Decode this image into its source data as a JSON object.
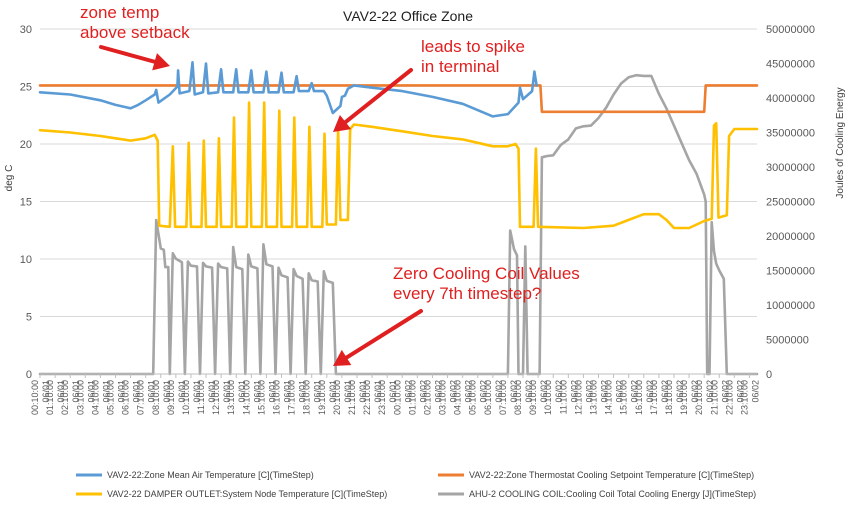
{
  "chart_data": {
    "type": "line",
    "title": "VAV2-22 Office Zone",
    "ylabel_left": "deg C",
    "ylabel_right": "Joules of Cooling Energy",
    "ylim_left": [
      0,
      30
    ],
    "yticks_left": [
      "0",
      "5",
      "10",
      "15",
      "20",
      "25",
      "30"
    ],
    "ylim_right": [
      0,
      50000000
    ],
    "yticks_right": [
      "0",
      "5000000",
      "10000000",
      "15000000",
      "20000000",
      "25000000",
      "30000000",
      "35000000",
      "40000000",
      "45000000",
      "50000000"
    ],
    "categories": [
      "06/01 00:10:00",
      "06/01 01:10:00",
      "06/01 02:10:00",
      "06/01 03:10:00",
      "06/01 04:10:00",
      "06/01 05:10:00",
      "06/01 06:10:00",
      "06/01 07:10:00",
      "06/01 08:10:00",
      "06/01 09:10:00",
      "06/01 10:10:00",
      "06/01 11:10:00",
      "06/01 12:10:00",
      "06/01 13:10:00",
      "06/01 14:10:00",
      "06/01 15:10:00",
      "06/01 16:10:00",
      "06/01 17:10:00",
      "06/01 18:10:00",
      "06/01 19:10:00",
      "06/01 20:10:00",
      "06/01 21:10:00",
      "06/01 22:10:00",
      "06/01 23:10:00",
      "06/02 00:10:00",
      "06/02 01:10:00",
      "06/02 02:10:00",
      "06/02 03:10:00",
      "06/02 04:10:00",
      "06/02 05:10:00",
      "06/02 06:10:00",
      "06/02 07:10:00",
      "06/02 08:10:00",
      "06/02 09:10:00",
      "06/02 10:10:00",
      "06/02 11:10:00",
      "06/02 12:10:00",
      "06/02 13:10:00",
      "06/02 14:10:00",
      "06/02 15:10:00",
      "06/02 16:10:00",
      "06/02 17:10:00",
      "06/02 18:10:00",
      "06/02 19:10:00",
      "06/02 20:10:00",
      "06/02 21:10:00",
      "06/02 22:10:00",
      "06/02 23:10:00"
    ],
    "x_range_hours": [
      0,
      47.5
    ],
    "series": [
      {
        "name": "VAV2-22:Zone Mean Air Temperature [C](TimeStep)",
        "color": "#5b9bd5",
        "axis": "left",
        "points": [
          [
            0,
            24.5
          ],
          [
            2,
            24.3
          ],
          [
            4,
            23.8
          ],
          [
            5,
            23.4
          ],
          [
            6,
            23.1
          ],
          [
            6.5,
            23.4
          ],
          [
            7,
            23.8
          ],
          [
            7.6,
            24.3
          ],
          [
            7.7,
            24.7
          ],
          [
            7.85,
            23.6
          ],
          [
            8.6,
            24.3
          ],
          [
            9.1,
            25.0
          ],
          [
            9.15,
            26.4
          ],
          [
            9.25,
            24.4
          ],
          [
            9.9,
            24.6
          ],
          [
            10.1,
            27.1
          ],
          [
            10.25,
            24.3
          ],
          [
            10.8,
            24.5
          ],
          [
            11.0,
            27.0
          ],
          [
            11.15,
            24.4
          ],
          [
            11.8,
            24.5
          ],
          [
            12.0,
            26.5
          ],
          [
            12.15,
            24.5
          ],
          [
            12.8,
            24.5
          ],
          [
            13.0,
            26.5
          ],
          [
            13.15,
            24.5
          ],
          [
            13.8,
            24.5
          ],
          [
            14.0,
            26.4
          ],
          [
            14.15,
            24.5
          ],
          [
            14.8,
            24.5
          ],
          [
            15.0,
            26.3
          ],
          [
            15.15,
            24.5
          ],
          [
            15.8,
            24.5
          ],
          [
            16.0,
            26.2
          ],
          [
            16.15,
            24.5
          ],
          [
            16.8,
            24.5
          ],
          [
            17.0,
            25.9
          ],
          [
            17.15,
            24.6
          ],
          [
            17.8,
            24.6
          ],
          [
            18.0,
            25.3
          ],
          [
            18.15,
            24.6
          ],
          [
            18.8,
            24.6
          ],
          [
            19.0,
            24.2
          ],
          [
            19.4,
            22.7
          ],
          [
            19.9,
            23.3
          ],
          [
            20.0,
            24.1
          ],
          [
            20.2,
            24.2
          ],
          [
            20.4,
            24.8
          ],
          [
            20.8,
            25.1
          ],
          [
            22,
            24.9
          ],
          [
            24,
            24.6
          ],
          [
            26,
            24.1
          ],
          [
            28,
            23.5
          ],
          [
            30,
            22.4
          ],
          [
            31,
            22.6
          ],
          [
            31.7,
            23.6
          ],
          [
            31.8,
            24.9
          ],
          [
            32,
            23.9
          ],
          [
            32.6,
            24.6
          ],
          [
            32.75,
            26.3
          ],
          [
            32.9,
            25.1
          ]
        ]
      },
      {
        "name": "VAV2-22:Zone Thermostat Cooling Setpoint Temperature [C](TimeStep)",
        "color": "#ed7d31",
        "axis": "left",
        "points": [
          [
            0,
            25.1
          ],
          [
            32.9,
            25.1
          ],
          [
            33.15,
            25.1
          ],
          [
            33.25,
            22.8
          ],
          [
            44.0,
            22.8
          ],
          [
            44.1,
            25.1
          ],
          [
            47.5,
            25.1
          ]
        ]
      },
      {
        "name": "VAV2-22 DAMPER OUTLET:System Node Temperature [C](TimeStep)",
        "color": "#ffc000",
        "axis": "left",
        "points": [
          [
            0,
            21.2
          ],
          [
            2,
            21.0
          ],
          [
            4,
            20.7
          ],
          [
            5,
            20.5
          ],
          [
            6,
            20.3
          ],
          [
            7,
            20.5
          ],
          [
            7.6,
            20.8
          ],
          [
            7.8,
            20.3
          ],
          [
            7.9,
            12.9
          ],
          [
            8.6,
            12.8
          ],
          [
            8.8,
            19.8
          ],
          [
            8.95,
            12.8
          ],
          [
            9.7,
            12.8
          ],
          [
            9.85,
            20.1
          ],
          [
            10.0,
            12.8
          ],
          [
            10.7,
            12.8
          ],
          [
            10.85,
            20.3
          ],
          [
            11.0,
            12.8
          ],
          [
            11.7,
            12.8
          ],
          [
            11.85,
            20.5
          ],
          [
            12.0,
            12.8
          ],
          [
            12.7,
            12.8
          ],
          [
            12.85,
            22.3
          ],
          [
            13.0,
            12.8
          ],
          [
            13.7,
            12.8
          ],
          [
            13.85,
            23.6
          ],
          [
            14.0,
            12.8
          ],
          [
            14.7,
            12.8
          ],
          [
            14.85,
            23.6
          ],
          [
            15.0,
            12.8
          ],
          [
            15.7,
            12.8
          ],
          [
            15.85,
            22.9
          ],
          [
            16.0,
            12.8
          ],
          [
            16.7,
            12.8
          ],
          [
            16.85,
            22.3
          ],
          [
            17.0,
            12.8
          ],
          [
            17.7,
            12.8
          ],
          [
            17.85,
            21.5
          ],
          [
            18.0,
            12.8
          ],
          [
            18.7,
            12.8
          ],
          [
            18.85,
            20.9
          ],
          [
            19.0,
            13.0
          ],
          [
            19.6,
            13.0
          ],
          [
            19.75,
            21.3
          ],
          [
            19.9,
            13.4
          ],
          [
            20.4,
            13.4
          ],
          [
            20.55,
            21.3
          ],
          [
            20.8,
            21.7
          ],
          [
            22,
            21.5
          ],
          [
            24,
            21.1
          ],
          [
            26,
            20.7
          ],
          [
            28,
            20.4
          ],
          [
            29,
            20.1
          ],
          [
            30,
            19.8
          ],
          [
            31,
            19.8
          ],
          [
            31.5,
            20.0
          ],
          [
            31.7,
            19.6
          ],
          [
            31.8,
            12.8
          ],
          [
            32.7,
            12.8
          ],
          [
            32.85,
            19.6
          ],
          [
            33.0,
            12.8
          ],
          [
            36,
            12.7
          ],
          [
            38,
            12.9
          ],
          [
            39,
            13.4
          ],
          [
            40,
            13.9
          ],
          [
            41,
            13.9
          ],
          [
            41.5,
            13.4
          ],
          [
            42,
            12.7
          ],
          [
            43,
            12.7
          ],
          [
            44,
            13.3
          ],
          [
            44.5,
            13.5
          ],
          [
            44.65,
            21.6
          ],
          [
            44.8,
            21.8
          ],
          [
            44.95,
            13.6
          ],
          [
            45.5,
            13.8
          ],
          [
            45.65,
            20.7
          ],
          [
            46,
            21.3
          ],
          [
            47.5,
            21.3
          ]
        ]
      },
      {
        "name": "AHU-2 COOLING COIL:Cooling Coil Total Cooling Energy [J](TimeStep)",
        "color": "#a5a5a5",
        "axis": "right",
        "points": [
          [
            0,
            0
          ],
          [
            7.5,
            0
          ],
          [
            7.7,
            22300000
          ],
          [
            8.0,
            18200000
          ],
          [
            8.2,
            18000000
          ],
          [
            8.3,
            15500000
          ],
          [
            8.5,
            15500000
          ],
          [
            8.6,
            0
          ],
          [
            8.8,
            17500000
          ],
          [
            9.0,
            16700000
          ],
          [
            9.4,
            16200000
          ],
          [
            9.6,
            0
          ],
          [
            9.8,
            16300000
          ],
          [
            10.0,
            15700000
          ],
          [
            10.4,
            15600000
          ],
          [
            10.6,
            0
          ],
          [
            10.8,
            16100000
          ],
          [
            11.0,
            15600000
          ],
          [
            11.4,
            15400000
          ],
          [
            11.6,
            0
          ],
          [
            11.8,
            16000000
          ],
          [
            12.0,
            15500000
          ],
          [
            12.4,
            15300000
          ],
          [
            12.6,
            0
          ],
          [
            12.8,
            18400000
          ],
          [
            13.0,
            15500000
          ],
          [
            13.4,
            15200000
          ],
          [
            13.6,
            0
          ],
          [
            13.8,
            17300000
          ],
          [
            14.0,
            15600000
          ],
          [
            14.4,
            15300000
          ],
          [
            14.6,
            0
          ],
          [
            14.8,
            18800000
          ],
          [
            15.0,
            15900000
          ],
          [
            15.4,
            15600000
          ],
          [
            15.6,
            0
          ],
          [
            15.8,
            15400000
          ],
          [
            16.0,
            14300000
          ],
          [
            16.4,
            14000000
          ],
          [
            16.6,
            0
          ],
          [
            16.8,
            15200000
          ],
          [
            17.0,
            14200000
          ],
          [
            17.4,
            13800000
          ],
          [
            17.6,
            0
          ],
          [
            17.8,
            14600000
          ],
          [
            18.0,
            13600000
          ],
          [
            18.4,
            13400000
          ],
          [
            18.6,
            0
          ],
          [
            18.8,
            14900000
          ],
          [
            19.0,
            13500000
          ],
          [
            19.4,
            13200000
          ],
          [
            19.6,
            0
          ],
          [
            31.0,
            0
          ],
          [
            31.15,
            20800000
          ],
          [
            31.4,
            18100000
          ],
          [
            31.6,
            17200000
          ],
          [
            31.7,
            0
          ],
          [
            32.0,
            0
          ],
          [
            32.15,
            18500000
          ],
          [
            32.3,
            0
          ],
          [
            33.1,
            0
          ],
          [
            33.25,
            31400000
          ],
          [
            33.6,
            31600000
          ],
          [
            34,
            31700000
          ],
          [
            34.5,
            33200000
          ],
          [
            35,
            34000000
          ],
          [
            35.5,
            35600000
          ],
          [
            36,
            35900000
          ],
          [
            36.5,
            36000000
          ],
          [
            37,
            37100000
          ],
          [
            37.5,
            38600000
          ],
          [
            38,
            40500000
          ],
          [
            38.5,
            42100000
          ],
          [
            39,
            43000000
          ],
          [
            39.5,
            43300000
          ],
          [
            40,
            43200000
          ],
          [
            40.5,
            43200000
          ],
          [
            41,
            40600000
          ],
          [
            41.5,
            38500000
          ],
          [
            42,
            36000000
          ],
          [
            42.5,
            33500000
          ],
          [
            43,
            31000000
          ],
          [
            43.5,
            29000000
          ],
          [
            44,
            26000000
          ],
          [
            44.1,
            25000000
          ],
          [
            44.2,
            0
          ],
          [
            44.35,
            0
          ],
          [
            44.5,
            22000000
          ],
          [
            44.65,
            17800000
          ],
          [
            44.8,
            16000000
          ],
          [
            45.0,
            15000000
          ],
          [
            45.3,
            13800000
          ],
          [
            45.5,
            0
          ],
          [
            47.5,
            0
          ]
        ]
      }
    ],
    "legend_placement": "bottom",
    "grid": "horizontal",
    "annotations": [
      {
        "text": "zone temp",
        "color": "#e02020"
      },
      {
        "text": "above setback",
        "color": "#e02020"
      },
      {
        "text": "leads to spike",
        "color": "#e02020"
      },
      {
        "text": "in terminal",
        "color": "#e02020"
      },
      {
        "text": "Zero Cooling Coil Values",
        "color": "#e02020"
      },
      {
        "text": "every 7th timestep?",
        "color": "#e02020"
      }
    ]
  }
}
